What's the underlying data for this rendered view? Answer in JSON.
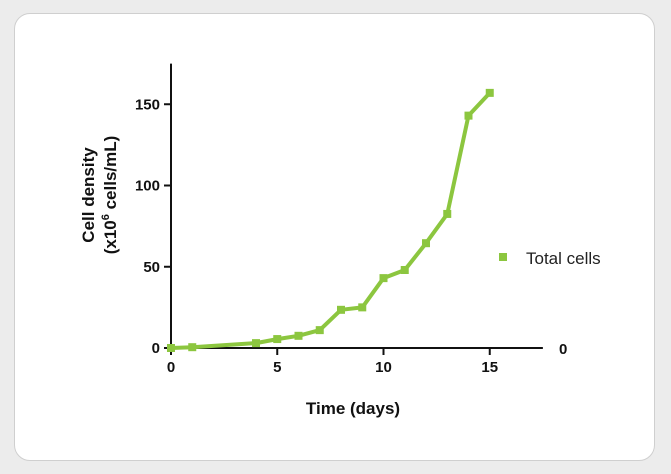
{
  "chart_data": {
    "type": "line",
    "xlabel": "Time (days)",
    "ylabel_line1": "Cell density",
    "ylabel_line2_prefix": "(x10",
    "ylabel_line2_sup": "6",
    "ylabel_line2_suffix": " cells/mL)",
    "xlim": [
      0,
      17.5
    ],
    "ylim": [
      0,
      175
    ],
    "x_ticks": [
      0,
      5,
      10,
      15
    ],
    "y_ticks": [
      0,
      50,
      100,
      150
    ],
    "right_axis_label": "0",
    "grid": false,
    "legend_position": "right",
    "series": [
      {
        "name": "Total cells",
        "color": "#8cc63f",
        "marker": "square",
        "x": [
          0,
          1,
          4,
          5,
          6,
          7,
          8,
          9,
          10,
          11,
          12,
          13,
          14,
          15
        ],
        "y": [
          0,
          0.5,
          3,
          5.5,
          7.5,
          11,
          23.5,
          25,
          43,
          48,
          64.5,
          82.5,
          143,
          157
        ]
      }
    ]
  }
}
